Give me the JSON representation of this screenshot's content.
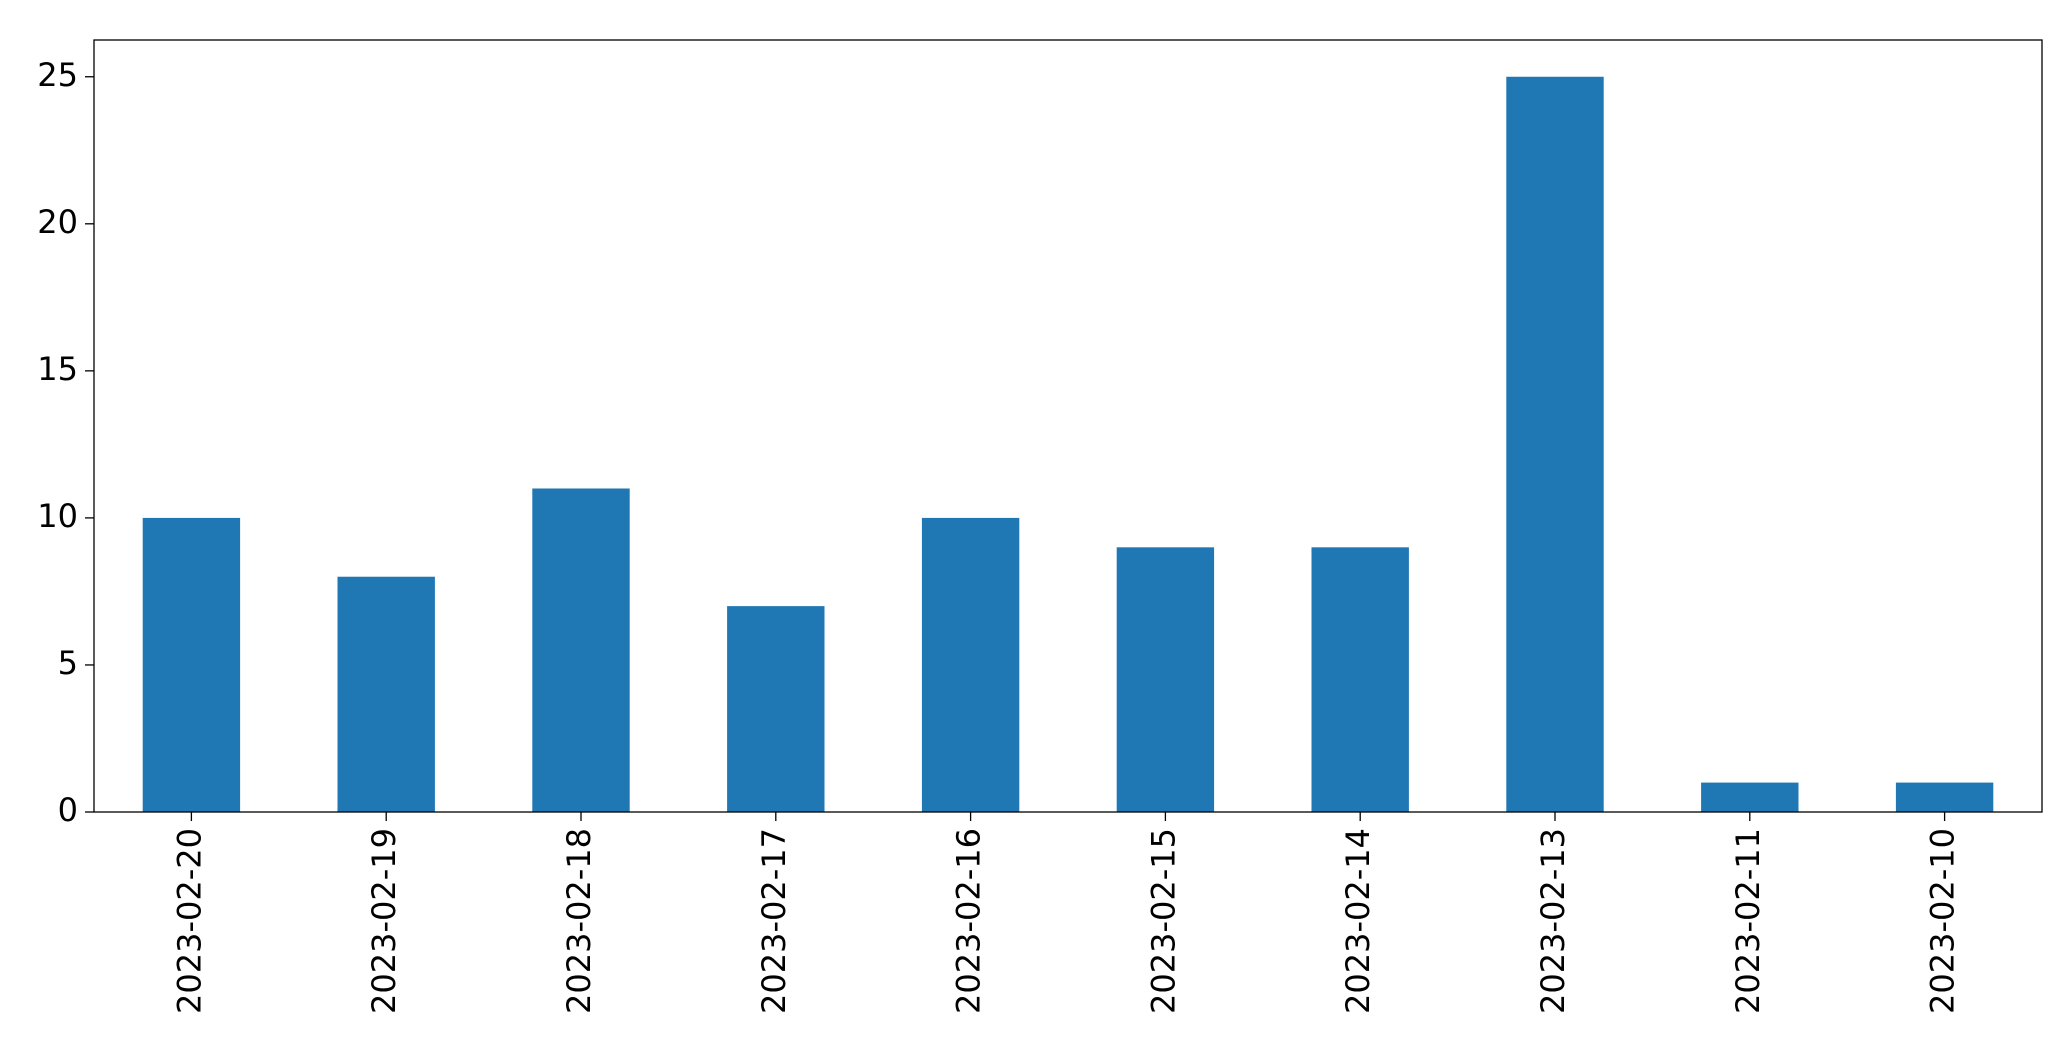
{
  "chart_data": {
    "type": "bar",
    "categories": [
      "2023-02-20",
      "2023-02-19",
      "2023-02-18",
      "2023-02-17",
      "2023-02-16",
      "2023-02-15",
      "2023-02-14",
      "2023-02-13",
      "2023-02-11",
      "2023-02-10"
    ],
    "values": [
      10,
      8,
      11,
      7,
      10,
      9,
      9,
      25,
      1,
      1
    ],
    "color": "#1f77b4",
    "ylim": [
      0,
      26.25
    ],
    "yticks": [
      0,
      5,
      10,
      15,
      20,
      25
    ],
    "grid": false
  }
}
